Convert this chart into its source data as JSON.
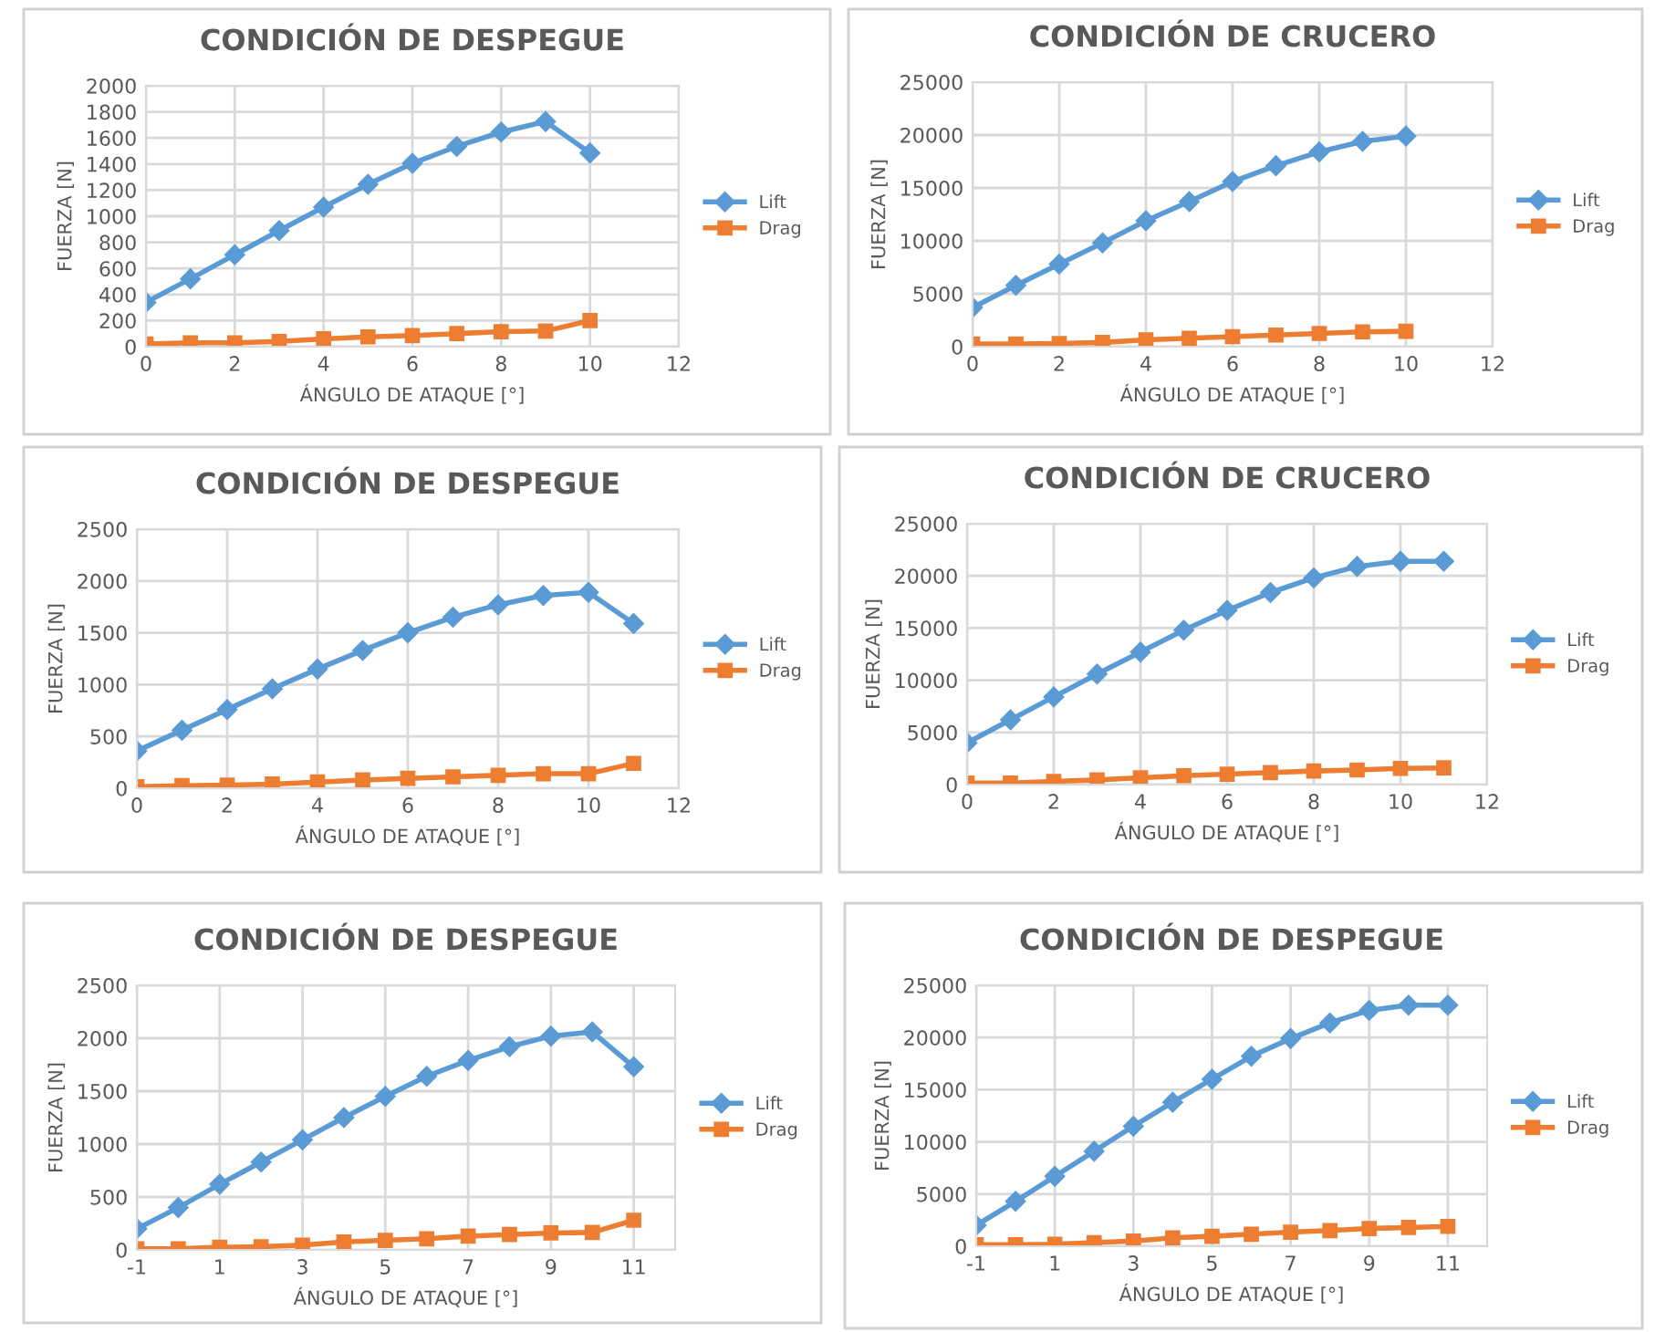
{
  "chart_data": [
    {
      "type": "line",
      "title": "CONDICIÓN DE DESPEGUE",
      "xlabel": "ÁNGULO DE ATAQUE [°]",
      "ylabel": "FUERZA [N]",
      "x": [
        0,
        1,
        2,
        3,
        4,
        5,
        6,
        7,
        8,
        9,
        10
      ],
      "xlim": [
        0,
        12
      ],
      "xticks": [
        0,
        2,
        4,
        6,
        8,
        10,
        12
      ],
      "ylim": [
        0,
        2000
      ],
      "yticks": [
        0,
        200,
        400,
        600,
        800,
        1000,
        1200,
        1400,
        1600,
        1800,
        2000
      ],
      "grid": true,
      "legend": "right",
      "series": [
        {
          "name": "Lift",
          "color": "#5b9bd5",
          "marker": "diamond",
          "values": [
            340,
            520,
            705,
            890,
            1070,
            1245,
            1405,
            1535,
            1645,
            1725,
            1485
          ]
        },
        {
          "name": "Drag",
          "color": "#ed7d31",
          "marker": "square",
          "values": [
            20,
            30,
            30,
            40,
            60,
            75,
            85,
            100,
            115,
            120,
            200
          ]
        }
      ]
    },
    {
      "type": "line",
      "title": "CONDICIÓN DE CRUCERO",
      "xlabel": "ÁNGULO DE ATAQUE [°]",
      "ylabel": "FUERZA [N]",
      "x": [
        0,
        1,
        2,
        3,
        4,
        5,
        6,
        7,
        8,
        9,
        10
      ],
      "xlim": [
        0,
        12
      ],
      "xticks": [
        0,
        2,
        4,
        6,
        8,
        10,
        12
      ],
      "ylim": [
        0,
        25000
      ],
      "yticks": [
        0,
        5000,
        10000,
        15000,
        20000,
        25000
      ],
      "grid": true,
      "legend": "right",
      "series": [
        {
          "name": "Lift",
          "color": "#5b9bd5",
          "marker": "diamond",
          "values": [
            3700,
            5800,
            7800,
            9800,
            11900,
            13700,
            15600,
            17100,
            18400,
            19400,
            19900
          ]
        },
        {
          "name": "Drag",
          "color": "#ed7d31",
          "marker": "square",
          "values": [
            250,
            250,
            300,
            400,
            650,
            800,
            950,
            1100,
            1250,
            1400,
            1450
          ]
        }
      ]
    },
    {
      "type": "line",
      "title": "CONDICIÓN DE DESPEGUE",
      "xlabel": "ÁNGULO DE ATAQUE [°]",
      "ylabel": "FUERZA [N]",
      "x": [
        0,
        1,
        2,
        3,
        4,
        5,
        6,
        7,
        8,
        9,
        10,
        11
      ],
      "xlim": [
        0,
        12
      ],
      "xticks": [
        0,
        2,
        4,
        6,
        8,
        10,
        12
      ],
      "ylim": [
        0,
        2500
      ],
      "yticks": [
        0,
        500,
        1000,
        1500,
        2000,
        2500
      ],
      "grid": true,
      "legend": "right",
      "series": [
        {
          "name": "Lift",
          "color": "#5b9bd5",
          "marker": "diamond",
          "values": [
            360,
            560,
            760,
            960,
            1150,
            1330,
            1500,
            1650,
            1770,
            1860,
            1890,
            1590
          ]
        },
        {
          "name": "Drag",
          "color": "#ed7d31",
          "marker": "square",
          "values": [
            15,
            25,
            30,
            40,
            60,
            80,
            95,
            110,
            125,
            140,
            140,
            240
          ]
        }
      ]
    },
    {
      "type": "line",
      "title": "CONDICIÓN DE CRUCERO",
      "xlabel": "ÁNGULO DE ATAQUE [°]",
      "ylabel": "FUERZA [N]",
      "x": [
        0,
        1,
        2,
        3,
        4,
        5,
        6,
        7,
        8,
        9,
        10,
        11
      ],
      "xlim": [
        0,
        12
      ],
      "xticks": [
        0,
        2,
        4,
        6,
        8,
        10,
        12
      ],
      "ylim": [
        0,
        25000
      ],
      "yticks": [
        0,
        5000,
        10000,
        15000,
        20000,
        25000
      ],
      "grid": true,
      "legend": "right",
      "series": [
        {
          "name": "Lift",
          "color": "#5b9bd5",
          "marker": "diamond",
          "values": [
            4000,
            6200,
            8400,
            10600,
            12700,
            14800,
            16700,
            18400,
            19800,
            20900,
            21400,
            21400
          ]
        },
        {
          "name": "Drag",
          "color": "#ed7d31",
          "marker": "square",
          "values": [
            150,
            150,
            300,
            450,
            650,
            850,
            1000,
            1150,
            1300,
            1400,
            1550,
            1600
          ]
        }
      ]
    },
    {
      "type": "line",
      "title": "CONDICIÓN DE DESPEGUE",
      "xlabel": "ÁNGULO DE ATAQUE [°]",
      "ylabel": "FUERZA [N]",
      "x": [
        -1,
        0,
        1,
        2,
        3,
        4,
        5,
        6,
        7,
        8,
        9,
        10,
        11
      ],
      "xlim": [
        -1,
        12
      ],
      "xticks": [
        -1,
        1,
        3,
        5,
        7,
        9,
        11
      ],
      "ylim": [
        0,
        2500
      ],
      "yticks": [
        0,
        500,
        1000,
        1500,
        2000,
        2500
      ],
      "grid": true,
      "legend": "right",
      "series": [
        {
          "name": "Lift",
          "color": "#5b9bd5",
          "marker": "diamond",
          "values": [
            200,
            400,
            620,
            830,
            1040,
            1250,
            1450,
            1640,
            1790,
            1920,
            2020,
            2060,
            1730
          ]
        },
        {
          "name": "Drag",
          "color": "#ed7d31",
          "marker": "square",
          "values": [
            10,
            10,
            25,
            30,
            45,
            75,
            90,
            105,
            130,
            145,
            160,
            165,
            280
          ]
        }
      ]
    },
    {
      "type": "line",
      "title": "CONDICIÓN DE DESPEGUE",
      "xlabel": "ÁNGULO DE ATAQUE [°]",
      "ylabel": "FUERZA [N]",
      "x": [
        -1,
        0,
        1,
        2,
        3,
        4,
        5,
        6,
        7,
        8,
        9,
        10,
        11
      ],
      "xlim": [
        -1,
        12
      ],
      "xticks": [
        -1,
        1,
        3,
        5,
        7,
        9,
        11
      ],
      "ylim": [
        0,
        25000
      ],
      "yticks": [
        0,
        5000,
        10000,
        15000,
        20000,
        25000
      ],
      "grid": true,
      "legend": "right",
      "series": [
        {
          "name": "Lift",
          "color": "#5b9bd5",
          "marker": "diamond",
          "values": [
            2000,
            4300,
            6700,
            9100,
            11500,
            13800,
            16000,
            18200,
            19900,
            21400,
            22600,
            23100,
            23100
          ]
        },
        {
          "name": "Drag",
          "color": "#ed7d31",
          "marker": "square",
          "values": [
            150,
            150,
            200,
            350,
            500,
            800,
            950,
            1150,
            1350,
            1500,
            1700,
            1800,
            1900
          ]
        }
      ]
    }
  ]
}
